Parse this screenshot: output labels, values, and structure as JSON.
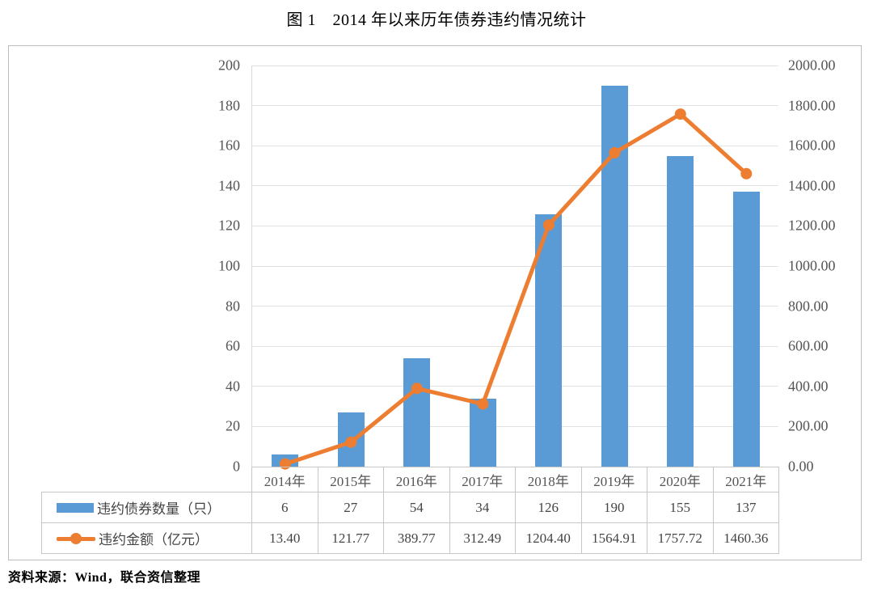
{
  "title": "图 1　2014 年以来历年债券违约情况统计",
  "source": "资料来源：Wind，联合资信整理",
  "chart_data": {
    "type": "bar",
    "subtype": "bar+line combo, dual axis",
    "title": "图 1　2014 年以来历年债券违约情况统计",
    "categories": [
      "2014年",
      "2015年",
      "2016年",
      "2017年",
      "2018年",
      "2019年",
      "2020年",
      "2021年"
    ],
    "series": [
      {
        "name": "违约债券数量（只）",
        "type": "bar",
        "axis": "left",
        "color": "#5B9BD5",
        "values": [
          6,
          27,
          54,
          34,
          126,
          190,
          155,
          137
        ],
        "display_values": [
          "6",
          "27",
          "54",
          "34",
          "126",
          "190",
          "155",
          "137"
        ]
      },
      {
        "name": "违约金额（亿元）",
        "type": "line",
        "axis": "right",
        "color": "#ED7D31",
        "marker": "circle",
        "values": [
          13.4,
          121.77,
          389.77,
          312.49,
          1204.4,
          1564.91,
          1757.72,
          1460.36
        ],
        "display_values": [
          "13.40",
          "121.77",
          "389.77",
          "312.49",
          "1204.40",
          "1564.91",
          "1757.72",
          "1460.36"
        ]
      }
    ],
    "left_axis": {
      "min": 0,
      "max": 200,
      "step": 20,
      "decimals": 0
    },
    "right_axis": {
      "min": 0,
      "max": 2000,
      "step": 200,
      "decimals": 2
    },
    "grid": true,
    "legend_position": "bottom-table",
    "xlabel": "",
    "ylabel_left": "",
    "ylabel_right": ""
  }
}
